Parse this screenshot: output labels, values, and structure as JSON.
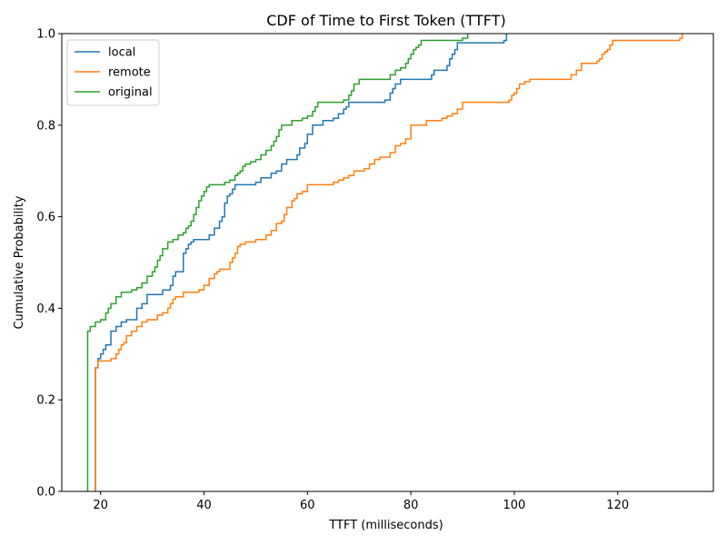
{
  "chart_data": {
    "type": "line",
    "step": true,
    "title": "CDF of Time to First Token (TTFT)",
    "xlabel": "TTFT (milliseconds)",
    "ylabel": "Cumulative Probability",
    "xlim": [
      12.5,
      138.5
    ],
    "ylim": [
      0.0,
      1.0
    ],
    "xticks": [
      20,
      40,
      60,
      80,
      100,
      120
    ],
    "yticks": [
      0.0,
      0.2,
      0.4,
      0.6,
      0.8,
      1.0
    ],
    "xtick_labels": [
      "20",
      "40",
      "60",
      "80",
      "100",
      "120"
    ],
    "ytick_labels": [
      "0.0",
      "0.2",
      "0.4",
      "0.6",
      "0.8",
      "1.0"
    ],
    "grid": false,
    "legend_position": "top-left",
    "series": [
      {
        "name": "local",
        "color": "#1f77b4",
        "x": [
          19.0,
          19.0,
          19.5,
          20.0,
          20.5,
          21.0,
          22.0,
          23.0,
          24.0,
          25.0,
          27.0,
          28.0,
          29.0,
          32.0,
          33.5,
          34.0,
          34.5,
          36.0,
          36.5,
          37.0,
          37.5,
          38.0,
          39.0,
          41.0,
          42.0,
          43.0,
          43.5,
          44.0,
          44.5,
          45.0,
          45.5,
          46.0,
          50.0,
          51.0,
          53.0,
          54.0,
          55.0,
          56.0,
          57.0,
          58.0,
          58.5,
          59.5,
          60.0,
          61.0,
          63.0,
          65.0,
          66.0,
          67.0,
          67.5,
          68.0,
          75.0,
          76.0,
          76.5,
          77.0,
          78.0,
          84.0,
          84.5,
          87.0,
          87.5,
          88.0,
          88.5,
          89.0,
          98.0,
          98.5
        ],
        "y": [
          0.0,
          0.27,
          0.29,
          0.3,
          0.31,
          0.32,
          0.35,
          0.36,
          0.37,
          0.375,
          0.4,
          0.41,
          0.43,
          0.44,
          0.45,
          0.47,
          0.48,
          0.52,
          0.53,
          0.54,
          0.545,
          0.55,
          0.55,
          0.56,
          0.575,
          0.59,
          0.6,
          0.63,
          0.645,
          0.65,
          0.66,
          0.67,
          0.675,
          0.685,
          0.695,
          0.7,
          0.715,
          0.725,
          0.725,
          0.735,
          0.75,
          0.76,
          0.78,
          0.8,
          0.81,
          0.815,
          0.825,
          0.835,
          0.84,
          0.85,
          0.855,
          0.87,
          0.88,
          0.89,
          0.9,
          0.91,
          0.92,
          0.93,
          0.945,
          0.955,
          0.965,
          0.98,
          0.985,
          1.0
        ]
      },
      {
        "name": "remote",
        "color": "#ff7f0e",
        "x": [
          19.0,
          19.0,
          19.5,
          22.0,
          23.0,
          23.5,
          24.0,
          24.5,
          25.0,
          26.0,
          27.0,
          28.0,
          29.0,
          31.0,
          32.0,
          33.0,
          33.5,
          34.0,
          34.5,
          36.0,
          37.0,
          39.0,
          40.0,
          41.0,
          42.0,
          42.5,
          43.0,
          45.0,
          45.5,
          46.0,
          46.5,
          47.0,
          48.0,
          50.0,
          52.0,
          53.0,
          54.0,
          55.0,
          55.5,
          56.0,
          57.0,
          57.5,
          58.0,
          59.0,
          60.0,
          65.0,
          66.0,
          67.0,
          68.0,
          69.0,
          71.0,
          72.0,
          73.0,
          74.0,
          76.0,
          77.0,
          78.0,
          79.0,
          80.0,
          82.0,
          83.0,
          86.0,
          87.0,
          88.0,
          89.0,
          90.0,
          99.0,
          99.5,
          100.0,
          100.5,
          101.0,
          102.0,
          103.0,
          104.0,
          111.0,
          112.0,
          113.0,
          116.0,
          116.5,
          117.0,
          117.5,
          118.0,
          118.5,
          119.0,
          120.0,
          132.0,
          132.5
        ],
        "y": [
          0.0,
          0.27,
          0.285,
          0.29,
          0.3,
          0.31,
          0.32,
          0.325,
          0.34,
          0.35,
          0.36,
          0.37,
          0.375,
          0.385,
          0.39,
          0.4,
          0.41,
          0.42,
          0.425,
          0.435,
          0.435,
          0.44,
          0.45,
          0.465,
          0.475,
          0.48,
          0.485,
          0.5,
          0.51,
          0.52,
          0.535,
          0.54,
          0.545,
          0.55,
          0.56,
          0.57,
          0.585,
          0.59,
          0.605,
          0.62,
          0.635,
          0.64,
          0.65,
          0.655,
          0.67,
          0.675,
          0.68,
          0.685,
          0.69,
          0.7,
          0.705,
          0.715,
          0.725,
          0.73,
          0.74,
          0.755,
          0.76,
          0.77,
          0.8,
          0.8,
          0.81,
          0.815,
          0.82,
          0.825,
          0.835,
          0.85,
          0.855,
          0.865,
          0.87,
          0.88,
          0.89,
          0.895,
          0.9,
          0.9,
          0.91,
          0.92,
          0.935,
          0.94,
          0.945,
          0.955,
          0.96,
          0.965,
          0.975,
          0.985,
          0.985,
          0.99,
          1.0
        ]
      },
      {
        "name": "original",
        "color": "#2ca02c",
        "x": [
          17.5,
          17.5,
          18.0,
          19.0,
          20.0,
          21.0,
          21.5,
          22.0,
          23.0,
          24.0,
          26.0,
          27.0,
          28.0,
          29.0,
          30.0,
          30.5,
          31.0,
          31.5,
          32.0,
          33.0,
          34.0,
          35.0,
          36.0,
          36.5,
          37.0,
          37.5,
          38.0,
          38.5,
          39.0,
          39.5,
          40.0,
          40.5,
          41.0,
          44.0,
          45.0,
          46.0,
          46.5,
          47.0,
          47.5,
          48.0,
          49.0,
          50.0,
          51.0,
          52.0,
          53.0,
          53.5,
          54.0,
          54.5,
          55.0,
          57.0,
          59.0,
          60.0,
          61.0,
          61.5,
          62.0,
          67.0,
          68.0,
          68.5,
          69.0,
          70.0,
          71.0,
          76.0,
          77.0,
          78.0,
          79.0,
          79.5,
          80.0,
          80.5,
          81.0,
          81.5,
          82.0,
          83.0,
          90.0,
          91.0
        ],
        "y": [
          0.0,
          0.35,
          0.36,
          0.37,
          0.375,
          0.39,
          0.4,
          0.41,
          0.425,
          0.435,
          0.44,
          0.445,
          0.455,
          0.47,
          0.48,
          0.49,
          0.505,
          0.515,
          0.53,
          0.545,
          0.55,
          0.56,
          0.565,
          0.575,
          0.58,
          0.59,
          0.605,
          0.62,
          0.635,
          0.645,
          0.655,
          0.665,
          0.67,
          0.675,
          0.68,
          0.69,
          0.695,
          0.7,
          0.71,
          0.715,
          0.72,
          0.725,
          0.735,
          0.745,
          0.755,
          0.765,
          0.775,
          0.79,
          0.8,
          0.81,
          0.815,
          0.82,
          0.83,
          0.84,
          0.85,
          0.855,
          0.865,
          0.875,
          0.89,
          0.9,
          0.9,
          0.91,
          0.92,
          0.925,
          0.935,
          0.945,
          0.955,
          0.965,
          0.97,
          0.975,
          0.985,
          0.985,
          0.99,
          1.0
        ]
      }
    ]
  }
}
